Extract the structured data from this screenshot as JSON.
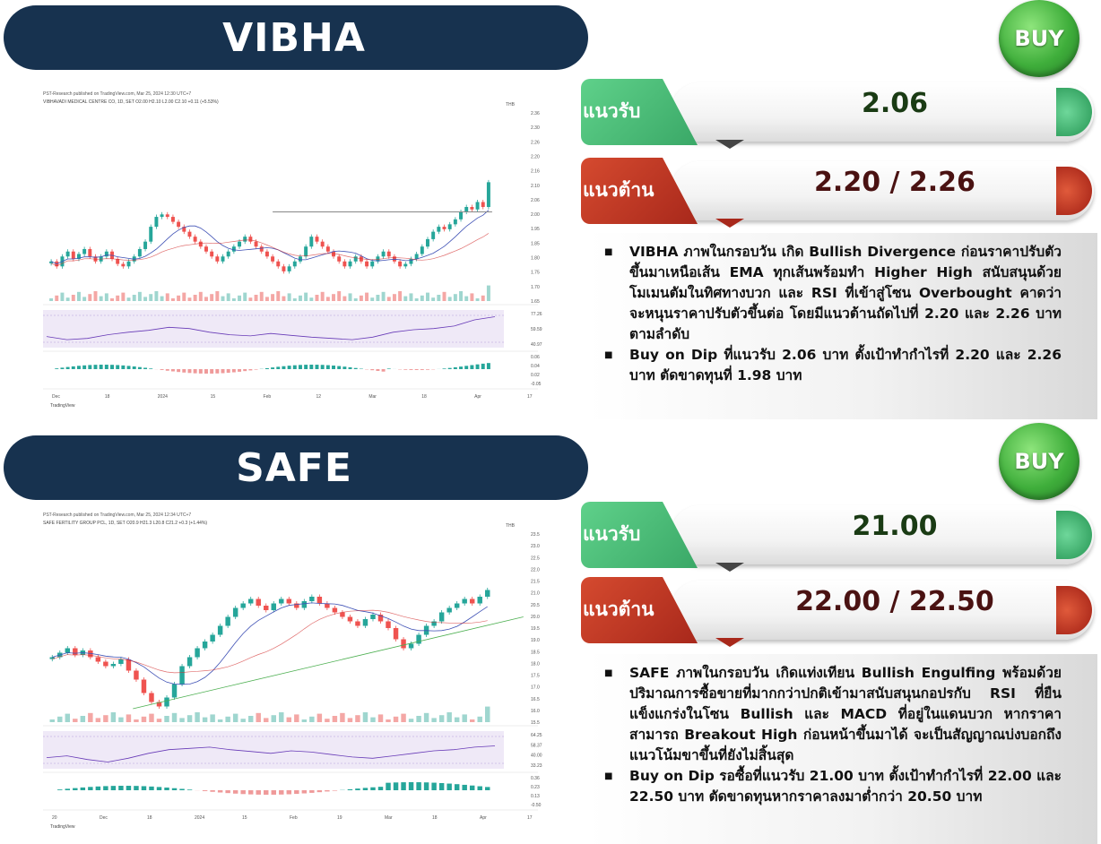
{
  "colors": {
    "banner": "#17324f",
    "buy": "#3fae3b",
    "support": "#3aa867",
    "resistance": "#b3301f",
    "up": "#26a69a",
    "down": "#ef5350"
  },
  "sections": [
    {
      "ticker": "VIBHA",
      "signal": "BUY",
      "support_label": "แนวรับ",
      "support_value": "2.06",
      "resistance_label": "แนวต้าน",
      "resistance_value": "2.20 / 2.26",
      "bullets": [
        "VIBHA ภาพในกรอบวัน เกิด Bullish Divergence ก่อนราคาปรับตัวขึ้นมาเหนือเส้น EMA ทุกเส้นพร้อมทำ Higher High สนับสนุนด้วยโมเมนตัมในทิศทางบวก และ RSI ที่เข้าสู่โซน Overbought คาดว่าจะหนุนราคาปรับตัวขึ้นต่อ โดยมีแนวต้านถัดไปที่ 2.20 และ 2.26 บาทตามลำดับ",
        "Buy on Dip ที่แนวรับ 2.06 บาท ตั้งเป้าทำกำไรที่ 2.20 และ 2.26 บาท ตัดขาดทุนที่ 1.98 บาท"
      ],
      "chart": {
        "published": "PST-Research published on TradingView.com, Mar 25, 2024 12:30 UTC+7",
        "symbol": "VIBHAVADI MEDICAL CENTRE CO, 1D, SET  O2.00 H2.10 L2.00 C2.10 +0.11 (+5.53%)",
        "currency": "THB",
        "price_ticks": [
          "2.36",
          "2.30",
          "2.26",
          "2.20",
          "2.16",
          "2.10",
          "2.06",
          "2.00",
          "1.95",
          "1.85",
          "1.80",
          "1.75",
          "1.70",
          "1.65"
        ],
        "rsi_ticks": [
          "77.26",
          "59.59",
          "40.97"
        ],
        "macd_ticks": [
          "0.06",
          "0.04",
          "0.02",
          "-0.05"
        ],
        "x_labels": [
          "Dec",
          "18",
          "2024",
          "15",
          "Feb",
          "12",
          "Mar",
          "18",
          "Apr",
          "17"
        ],
        "footer": "TradingView"
      },
      "chart_data": {
        "type": "candlestick",
        "ylim": [
          1.62,
          2.38
        ],
        "close": [
          1.78,
          1.76,
          1.8,
          1.82,
          1.79,
          1.81,
          1.83,
          1.8,
          1.78,
          1.8,
          1.82,
          1.79,
          1.77,
          1.76,
          1.78,
          1.8,
          1.83,
          1.86,
          1.92,
          1.96,
          1.97,
          1.96,
          1.94,
          1.92,
          1.9,
          1.88,
          1.86,
          1.84,
          1.82,
          1.8,
          1.78,
          1.8,
          1.82,
          1.84,
          1.86,
          1.88,
          1.86,
          1.84,
          1.82,
          1.8,
          1.78,
          1.76,
          1.74,
          1.76,
          1.78,
          1.8,
          1.84,
          1.88,
          1.86,
          1.84,
          1.82,
          1.8,
          1.78,
          1.76,
          1.78,
          1.8,
          1.78,
          1.76,
          1.78,
          1.8,
          1.82,
          1.8,
          1.78,
          1.76,
          1.77,
          1.79,
          1.81,
          1.84,
          1.87,
          1.9,
          1.92,
          1.91,
          1.93,
          1.95,
          1.98,
          2.0,
          1.99,
          2.02,
          2.0,
          2.1
        ],
        "ema": [
          1.86,
          1.84,
          1.82,
          1.8,
          1.8,
          1.81,
          1.83,
          1.85,
          1.86,
          1.86,
          1.85,
          1.83,
          1.82,
          1.8,
          1.8,
          1.82,
          1.85,
          1.88
        ],
        "resistance_line": 1.98,
        "rsi": [
          45,
          40,
          42,
          48,
          52,
          55,
          60,
          58,
          52,
          48,
          46,
          50,
          47,
          44,
          42,
          40,
          44,
          52,
          56,
          58,
          62,
          72,
          77
        ]
      }
    },
    {
      "ticker": "SAFE",
      "signal": "BUY",
      "support_label": "แนวรับ",
      "support_value": "21.00",
      "resistance_label": "แนวต้าน",
      "resistance_value": "22.00 / 22.50",
      "bullets": [
        "SAFE ภาพในกรอบวัน เกิดแท่งเทียน Bullish Engulfing พร้อมด้วยปริมาณการซื้อขายที่มากกว่าปกติเข้ามาสนับสนุนกอปรกับ RSI ที่ยืนแข็งแกร่งในโซน Bullish และ MACD ที่อยู่ในแดนบวก หากราคาสามารถ Breakout High ก่อนหน้าขึ้นมาได้ จะเป็นสัญญาณบ่งบอกถึงแนวโน้มขาขึ้นที่ยังไม่สิ้นสุด",
        "Buy on Dip รอซื้อที่แนวรับ 21.00 บาท ตั้งเป้าทำกำไรที่ 22.00 และ 22.50 บาท ตัดขาดทุนหากราคาลงมาต่ำกว่า 20.50 บาท"
      ],
      "chart": {
        "published": "PST-Research published on TradingView.com, Mar 25, 2024 12:34 UTC+7",
        "symbol": "SAFE FERTILITY GROUP PCL, 1D, SET  O20.9 H21.3 L20.8 C21.2 +0.3 (+1.44%)",
        "currency": "THB",
        "price_ticks": [
          "23.5",
          "23.0",
          "22.5",
          "22.0",
          "21.5",
          "21.0",
          "20.5",
          "20.0",
          "19.5",
          "19.0",
          "18.5",
          "18.0",
          "17.5",
          "17.0",
          "16.5",
          "16.0",
          "15.5"
        ],
        "rsi_ticks": [
          "64.25",
          "58.37",
          "40.00",
          "33.23"
        ],
        "macd_ticks": [
          "0.36",
          "0.23",
          "0.13",
          "-0.50"
        ],
        "x_labels": [
          "20",
          "Dec",
          "18",
          "2024",
          "15",
          "Feb",
          "19",
          "Mar",
          "18",
          "Apr",
          "17"
        ],
        "footer": "TradingView"
      },
      "chart_data": {
        "type": "candlestick",
        "ylim": [
          15.3,
          23.7
        ],
        "close": [
          18.2,
          18.4,
          18.6,
          18.3,
          18.5,
          18.2,
          18.0,
          17.8,
          17.9,
          18.1,
          17.6,
          17.2,
          16.6,
          16.2,
          16.0,
          16.4,
          17.0,
          17.8,
          18.2,
          18.6,
          18.9,
          19.2,
          19.6,
          20.0,
          20.4,
          20.6,
          20.8,
          20.5,
          20.3,
          20.6,
          20.8,
          20.6,
          20.4,
          20.7,
          20.9,
          20.6,
          20.4,
          20.2,
          20.0,
          19.8,
          19.6,
          19.9,
          20.1,
          19.8,
          19.5,
          19.0,
          18.6,
          18.8,
          19.2,
          19.6,
          19.8,
          20.2,
          20.4,
          20.6,
          20.8,
          20.6,
          20.9,
          21.2
        ],
        "trendline": [
          [
            0,
            15.9
          ],
          [
            57,
            20.0
          ]
        ],
        "rsi": [
          45,
          48,
          42,
          38,
          44,
          52,
          58,
          60,
          62,
          58,
          55,
          52,
          56,
          54,
          50,
          46,
          44,
          48,
          52,
          56,
          58,
          62,
          64
        ]
      }
    }
  ]
}
